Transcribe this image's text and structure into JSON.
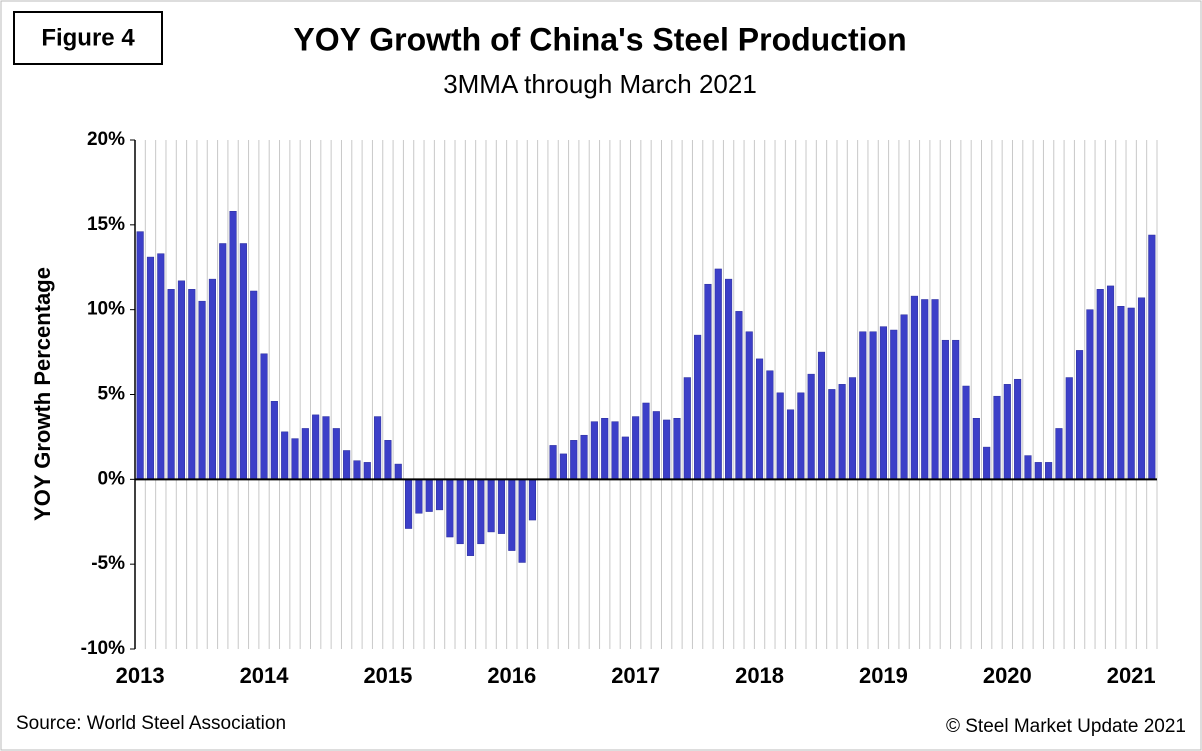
{
  "chart_data": {
    "type": "bar",
    "figure_label": "Figure 4",
    "title": "YOY Growth of China's Steel Production",
    "subtitle": "3MMA through March 2021",
    "y_label": "YOY Growth Percentage",
    "source": "Source: World Steel Association",
    "credit": "© Steel Market Update 2021",
    "color": "#3c3fc8",
    "grid": true,
    "categories": [
      "2013",
      null,
      null,
      null,
      null,
      null,
      null,
      null,
      null,
      null,
      null,
      null,
      "2014",
      null,
      null,
      null,
      null,
      null,
      null,
      null,
      null,
      null,
      null,
      null,
      "2015",
      null,
      null,
      null,
      null,
      null,
      null,
      null,
      null,
      null,
      null,
      null,
      "2016",
      null,
      null,
      null,
      null,
      null,
      null,
      null,
      null,
      null,
      null,
      null,
      "2017",
      null,
      null,
      null,
      null,
      null,
      null,
      null,
      null,
      null,
      null,
      null,
      "2018",
      null,
      null,
      null,
      null,
      null,
      null,
      null,
      null,
      null,
      null,
      null,
      "2019",
      null,
      null,
      null,
      null,
      null,
      null,
      null,
      null,
      null,
      null,
      null,
      "2020",
      null,
      null,
      null,
      null,
      null,
      null,
      null,
      null,
      null,
      null,
      null,
      "2021",
      null,
      null
    ],
    "values": [
      14.6,
      13.1,
      13.3,
      11.2,
      11.7,
      11.2,
      10.5,
      11.8,
      13.9,
      15.8,
      13.9,
      11.1,
      7.4,
      4.6,
      2.8,
      2.4,
      3.0,
      3.8,
      3.7,
      3.0,
      1.7,
      1.1,
      1.0,
      3.7,
      2.3,
      0.9,
      -2.9,
      -2.0,
      -1.9,
      -1.8,
      -3.4,
      -3.8,
      -4.5,
      -3.8,
      -3.1,
      -3.2,
      -4.2,
      -4.9,
      -2.4,
      null,
      2.0,
      1.5,
      2.3,
      2.6,
      3.4,
      3.6,
      3.4,
      2.5,
      3.7,
      4.5,
      4.0,
      3.5,
      3.6,
      6.0,
      8.5,
      11.5,
      12.4,
      11.8,
      9.9,
      8.7,
      7.1,
      6.4,
      5.1,
      4.1,
      5.1,
      6.2,
      7.5,
      5.3,
      5.6,
      6.0,
      8.7,
      8.7,
      9.0,
      8.8,
      9.7,
      10.8,
      10.6,
      10.6,
      8.2,
      8.2,
      5.5,
      3.6,
      1.9,
      4.9,
      5.6,
      5.9,
      1.4,
      1.0,
      1.0,
      3.0,
      6.0,
      7.6,
      10.0,
      11.2,
      11.4,
      10.2,
      10.1,
      10.7,
      14.4
    ],
    "ylim": [
      -10,
      20
    ],
    "yticks": [
      {
        "value": -10,
        "label": "-10%"
      },
      {
        "value": -5,
        "label": "-5%"
      },
      {
        "value": 0,
        "label": "0%"
      },
      {
        "value": 5,
        "label": "5%"
      },
      {
        "value": 10,
        "label": "10%"
      },
      {
        "value": 15,
        "label": "15%"
      },
      {
        "value": 20,
        "label": "20%"
      }
    ]
  }
}
